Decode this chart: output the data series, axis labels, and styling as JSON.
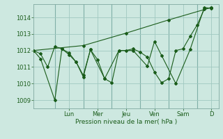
{
  "background_color": "#cde8e0",
  "plot_bg_color": "#cde8e0",
  "grid_color": "#a0c8c0",
  "line_color": "#1a5c1a",
  "marker_color": "#1a5c1a",
  "xlabel": "Pression niveau de la mer( hPa )",
  "xlim": [
    0,
    13
  ],
  "ylim": [
    1008.5,
    1014.8
  ],
  "yticks": [
    1009,
    1010,
    1011,
    1012,
    1013,
    1014
  ],
  "day_labels": [
    "Lun",
    "Mer",
    "Jeu",
    "Ven",
    "Sam",
    "D"
  ],
  "day_positions": [
    2.5,
    4.5,
    6.5,
    8.5,
    10.5,
    12.5
  ],
  "vline_positions": [
    1.5,
    3.5,
    5.5,
    7.5,
    9.5,
    11.5
  ],
  "series1_x": [
    0,
    0.5,
    1.0,
    1.5,
    2.0,
    2.5,
    3.0,
    3.5,
    4.0,
    4.5,
    5.0,
    5.5,
    6.0,
    6.5,
    7.0,
    7.5,
    8.0,
    8.5,
    9.0,
    9.5,
    10.0,
    10.5,
    11.0,
    11.5,
    12.0,
    12.5
  ],
  "series1_y": [
    1012.0,
    1011.8,
    1011.0,
    1012.25,
    1012.1,
    1011.85,
    1011.3,
    1010.4,
    1012.05,
    1011.45,
    1010.3,
    1010.05,
    1012.0,
    1012.0,
    1012.1,
    1011.9,
    1011.6,
    1010.7,
    1010.05,
    1010.3,
    1012.0,
    1012.1,
    1012.85,
    1013.55,
    1014.5,
    1014.6
  ],
  "series2_x": [
    0,
    0.5,
    1.5,
    2.0,
    2.5,
    3.0,
    3.5,
    4.0,
    5.0,
    6.0,
    7.0,
    8.0,
    8.5,
    9.0,
    10.0,
    11.0,
    12.0,
    12.5
  ],
  "series2_y": [
    1012.0,
    1011.5,
    1009.0,
    1012.1,
    1011.75,
    1011.3,
    1010.5,
    1012.05,
    1010.3,
    1012.0,
    1012.0,
    1011.05,
    1012.55,
    1011.7,
    1010.0,
    1012.05,
    1014.6,
    1014.55
  ],
  "series3_x": [
    0,
    3.5,
    6.5,
    9.5,
    12.5
  ],
  "series3_y": [
    1012.0,
    1012.3,
    1013.05,
    1013.85,
    1014.6
  ]
}
